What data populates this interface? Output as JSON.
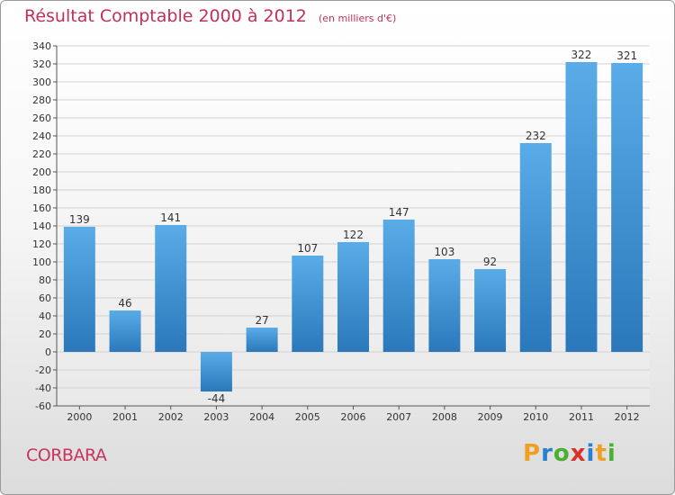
{
  "header": {
    "title": "Résultat Comptable 2000 à 2012",
    "subtitle": "(en milliers d'€)"
  },
  "footer": {
    "commune": "CORBARA",
    "logo": [
      "P",
      "r",
      "o",
      "x",
      "i",
      "t",
      "i"
    ],
    "logo_colors": [
      "#f0a020",
      "#2a7fd0",
      "#4caf32",
      "#d8322a",
      "#2a7fd0",
      "#f0a020",
      "#4caf32"
    ]
  },
  "chart_data": {
    "type": "bar",
    "title": "Résultat Comptable 2000 à 2012",
    "subtitle": "(en milliers d'€)",
    "categories": [
      "2000",
      "2001",
      "2002",
      "2003",
      "2004",
      "2005",
      "2006",
      "2007",
      "2008",
      "2009",
      "2010",
      "2011",
      "2012"
    ],
    "values": [
      139,
      46,
      141,
      -44,
      27,
      107,
      122,
      147,
      103,
      92,
      232,
      322,
      321
    ],
    "ylim": [
      -60,
      340
    ],
    "ytick_step": 20,
    "xlabel": "",
    "ylabel": "",
    "grid": true,
    "bar_color_top": "#5aace8",
    "bar_color_bottom": "#2a78ba"
  }
}
